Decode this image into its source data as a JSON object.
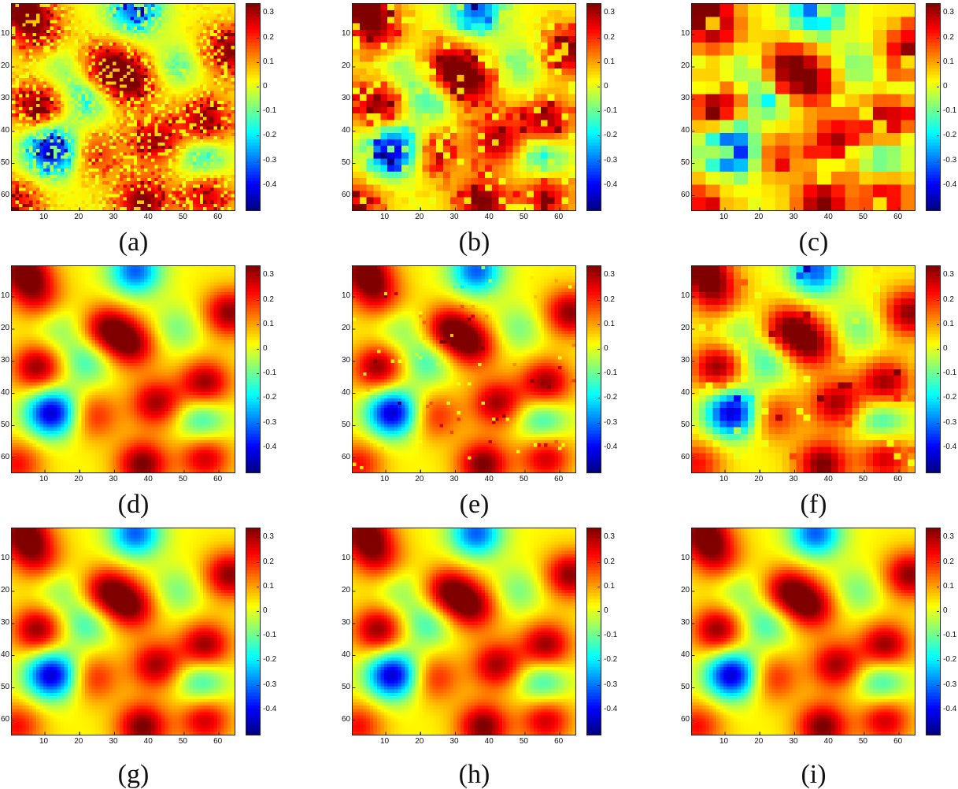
{
  "chart_data": {
    "type": "heatmap",
    "colormap": "jet",
    "grid_size": [
      64,
      64
    ],
    "xlim": [
      1,
      64
    ],
    "ylim": [
      1,
      64
    ],
    "y_reversed": true,
    "x_ticks": [
      "10",
      "20",
      "30",
      "40",
      "50",
      "60"
    ],
    "y_ticks": [
      "10",
      "20",
      "30",
      "40",
      "50",
      "60"
    ],
    "colorbar": {
      "range": [
        -0.5,
        0.34
      ],
      "ticks": [
        "0.3",
        "0.2",
        "0.1",
        "0",
        "-0.1",
        "-0.2",
        "-0.3",
        "-0.4"
      ]
    },
    "features": [
      {
        "x": 4,
        "y": 2,
        "value": 0.32
      },
      {
        "x": 8,
        "y": 10,
        "value": 0.2
      },
      {
        "x": 36,
        "y": 2,
        "value": -0.35
      },
      {
        "x": 28,
        "y": 20,
        "value": 0.3
      },
      {
        "x": 35,
        "y": 25,
        "value": 0.28
      },
      {
        "x": 63,
        "y": 15,
        "value": 0.3
      },
      {
        "x": 8,
        "y": 32,
        "value": 0.3
      },
      {
        "x": 22,
        "y": 30,
        "value": -0.18
      },
      {
        "x": 12,
        "y": 46,
        "value": -0.48
      },
      {
        "x": 42,
        "y": 43,
        "value": 0.28
      },
      {
        "x": 56,
        "y": 37,
        "value": 0.3
      },
      {
        "x": 55,
        "y": 48,
        "value": -0.2
      },
      {
        "x": 38,
        "y": 62,
        "value": 0.32
      },
      {
        "x": 56,
        "y": 60,
        "value": 0.25
      },
      {
        "x": 24,
        "y": 47,
        "value": 0.18
      },
      {
        "x": 2,
        "y": 62,
        "value": 0.2
      },
      {
        "x": 48,
        "y": 20,
        "value": -0.12
      },
      {
        "x": 14,
        "y": 20,
        "value": -0.1
      }
    ],
    "panels": [
      {
        "label": "(a)",
        "noise": 0.35,
        "block": 1
      },
      {
        "label": "(b)",
        "noise": 0.25,
        "block": 2
      },
      {
        "label": "(c)",
        "noise": 0.2,
        "block": 4
      },
      {
        "label": "(d)",
        "noise": 0.0,
        "block": 1
      },
      {
        "label": "(e)",
        "noise": 0.02,
        "block": 1
      },
      {
        "label": "(f)",
        "noise": 0.04,
        "block": 2
      },
      {
        "label": "(g)",
        "noise": 0.0,
        "block": 1
      },
      {
        "label": "(h)",
        "noise": 0.0,
        "block": 1
      },
      {
        "label": "(i)",
        "noise": 0.0,
        "block": 1
      }
    ]
  }
}
